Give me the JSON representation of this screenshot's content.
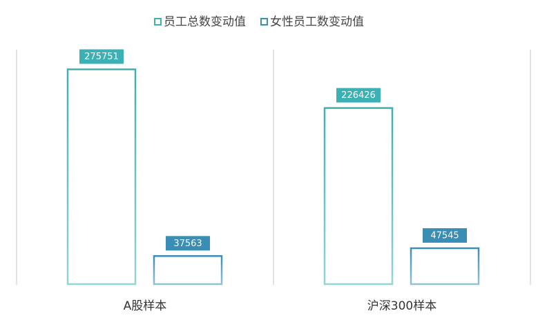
{
  "chart_data": {
    "type": "bar",
    "categories": [
      "A股样本",
      "沪深300样本"
    ],
    "series": [
      {
        "name": "员工总数变动值",
        "color": "#3bb0b5",
        "values": [
          275751,
          226426
        ]
      },
      {
        "name": "女性员工数变动值",
        "color": "#3a8db5",
        "values": [
          37563,
          47545
        ]
      }
    ],
    "ylim": [
      0,
      300000
    ],
    "legend": "top"
  }
}
